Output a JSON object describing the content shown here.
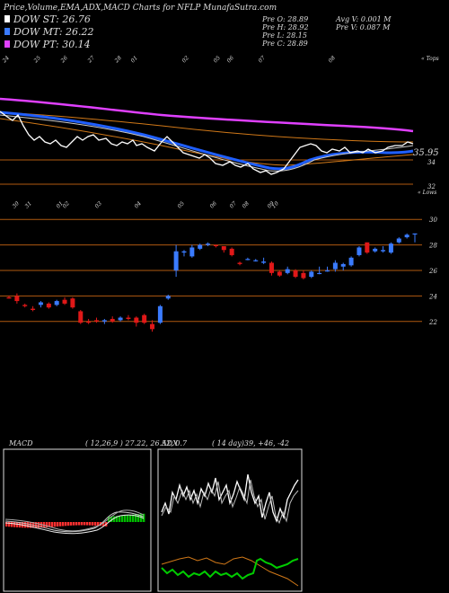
{
  "header": {
    "title": "Price,Volume,EMA,ADX,MACD Charts for NFLP MunafaSutra.com",
    "legend": [
      {
        "label": "DOW ST: 26.76",
        "color": "#ffffff"
      },
      {
        "label": "DOW MT: 26.22",
        "color": "#3a7bff"
      },
      {
        "label": "DOW PT: 30.14",
        "color": "#e040ff"
      }
    ],
    "stats_left": [
      "Pre   O: 28.89",
      "Pre   H: 28.92",
      "Pre   L: 28.15",
      "Pre   C: 28.89"
    ],
    "stats_right": [
      "Avg V: 0.001 M",
      "Pre   V: 0.087 M"
    ]
  },
  "colors": {
    "up": "#3a7bff",
    "down": "#e01818",
    "dow_st": "#ffffff",
    "dow_mt": "#1f5fff",
    "dow_pt": "#e040ff",
    "orange": "#d07818",
    "gridline": "#b05a10",
    "macd_green": "#00bb00",
    "macd_red": "#ff3030"
  },
  "chart_data": [
    {
      "type": "line",
      "name": "ema-panel",
      "top_label": "« Tops",
      "price_labels": [
        "35.95",
        "34",
        "32"
      ],
      "date_ticks": [
        "24",
        "25",
        "26",
        "27",
        "28",
        "01",
        "02",
        "05",
        "06",
        "07",
        "08"
      ]
    },
    {
      "type": "candlestick",
      "name": "price-panel",
      "low_label": "« Lows",
      "date_ticks": [
        "30",
        "31",
        "01",
        "02",
        "03",
        "04",
        "05",
        "06",
        "07",
        "08",
        "09",
        "10"
      ],
      "y_ticks": [
        "30",
        "28",
        "26",
        "24",
        "22"
      ],
      "ylim": [
        21,
        31
      ],
      "candles": [
        {
          "o": 23.9,
          "h": 24.0,
          "l": 23.8,
          "c": 23.8
        },
        {
          "o": 24.0,
          "h": 24.2,
          "l": 23.4,
          "c": 23.6
        },
        {
          "o": 23.3,
          "h": 23.4,
          "l": 23.1,
          "c": 23.2
        },
        {
          "o": 23.0,
          "h": 23.2,
          "l": 22.8,
          "c": 22.9
        },
        {
          "o": 23.3,
          "h": 23.6,
          "l": 23.1,
          "c": 23.5
        },
        {
          "o": 23.4,
          "h": 23.5,
          "l": 23.0,
          "c": 23.1
        },
        {
          "o": 23.3,
          "h": 23.7,
          "l": 23.2,
          "c": 23.6
        },
        {
          "o": 23.7,
          "h": 23.9,
          "l": 23.3,
          "c": 23.4
        },
        {
          "o": 23.8,
          "h": 23.9,
          "l": 23.0,
          "c": 23.1
        },
        {
          "o": 22.8,
          "h": 22.9,
          "l": 21.8,
          "c": 21.9
        },
        {
          "o": 22.0,
          "h": 22.2,
          "l": 21.8,
          "c": 21.9
        },
        {
          "o": 22.1,
          "h": 22.3,
          "l": 21.9,
          "c": 22.0
        },
        {
          "o": 22.0,
          "h": 22.2,
          "l": 21.8,
          "c": 22.1
        },
        {
          "o": 22.2,
          "h": 22.4,
          "l": 21.9,
          "c": 22.0
        },
        {
          "o": 22.1,
          "h": 22.4,
          "l": 22.0,
          "c": 22.3
        },
        {
          "o": 22.3,
          "h": 22.5,
          "l": 22.1,
          "c": 22.2
        },
        {
          "o": 22.3,
          "h": 22.4,
          "l": 21.6,
          "c": 21.9
        },
        {
          "o": 22.5,
          "h": 22.6,
          "l": 21.8,
          "c": 21.9
        },
        {
          "o": 21.8,
          "h": 22.1,
          "l": 21.2,
          "c": 21.4
        },
        {
          "o": 21.9,
          "h": 23.3,
          "l": 21.8,
          "c": 23.2
        },
        {
          "o": 23.8,
          "h": 24.1,
          "l": 23.7,
          "c": 24.0
        },
        {
          "o": 26.0,
          "h": 28.0,
          "l": 25.5,
          "c": 27.5
        },
        {
          "o": 27.4,
          "h": 27.6,
          "l": 27.1,
          "c": 27.5
        },
        {
          "o": 27.1,
          "h": 28.0,
          "l": 27.0,
          "c": 27.8
        },
        {
          "o": 27.7,
          "h": 28.1,
          "l": 27.6,
          "c": 28.0
        },
        {
          "o": 28.0,
          "h": 28.2,
          "l": 27.9,
          "c": 28.1
        },
        {
          "o": 28.0,
          "h": 28.0,
          "l": 27.8,
          "c": 27.9
        },
        {
          "o": 27.9,
          "h": 27.9,
          "l": 27.4,
          "c": 27.6
        },
        {
          "o": 27.7,
          "h": 27.8,
          "l": 27.1,
          "c": 27.2
        },
        {
          "o": 26.6,
          "h": 26.7,
          "l": 26.4,
          "c": 26.5
        },
        {
          "o": 26.9,
          "h": 27.0,
          "l": 26.8,
          "c": 26.9
        },
        {
          "o": 26.8,
          "h": 26.9,
          "l": 26.7,
          "c": 26.8
        },
        {
          "o": 26.6,
          "h": 27.0,
          "l": 26.5,
          "c": 26.7
        },
        {
          "o": 26.6,
          "h": 26.7,
          "l": 25.6,
          "c": 25.8
        },
        {
          "o": 25.9,
          "h": 26.0,
          "l": 25.5,
          "c": 25.6
        },
        {
          "o": 25.8,
          "h": 26.3,
          "l": 25.7,
          "c": 26.1
        },
        {
          "o": 26.0,
          "h": 26.1,
          "l": 25.4,
          "c": 25.5
        },
        {
          "o": 25.8,
          "h": 26.0,
          "l": 25.3,
          "c": 25.4
        },
        {
          "o": 25.5,
          "h": 26.0,
          "l": 25.4,
          "c": 25.9
        },
        {
          "o": 25.8,
          "h": 26.3,
          "l": 25.7,
          "c": 25.8
        },
        {
          "o": 26.0,
          "h": 26.3,
          "l": 25.9,
          "c": 26.0
        },
        {
          "o": 26.1,
          "h": 26.8,
          "l": 25.9,
          "c": 26.6
        },
        {
          "o": 26.3,
          "h": 26.6,
          "l": 26.0,
          "c": 26.5
        },
        {
          "o": 26.4,
          "h": 27.1,
          "l": 26.3,
          "c": 27.0
        },
        {
          "o": 27.2,
          "h": 27.9,
          "l": 27.1,
          "c": 27.8
        },
        {
          "o": 28.2,
          "h": 28.2,
          "l": 27.3,
          "c": 27.4
        },
        {
          "o": 27.5,
          "h": 27.8,
          "l": 27.4,
          "c": 27.7
        },
        {
          "o": 27.5,
          "h": 27.9,
          "l": 27.4,
          "c": 27.6
        },
        {
          "o": 27.4,
          "h": 28.2,
          "l": 27.3,
          "c": 28.1
        },
        {
          "o": 28.2,
          "h": 28.6,
          "l": 28.1,
          "c": 28.5
        },
        {
          "o": 28.6,
          "h": 28.9,
          "l": 28.5,
          "c": 28.8
        },
        {
          "o": 28.9,
          "h": 28.9,
          "l": 28.2,
          "c": 28.9
        }
      ]
    },
    {
      "type": "line",
      "name": "macd-panel",
      "label": "MACD",
      "params": "( 12,26,9 ) 27.22, 26.52, 0.7"
    },
    {
      "type": "line",
      "name": "adx-panel",
      "label": "ADX",
      "params": "( 14  day)39, +46, -42"
    }
  ]
}
